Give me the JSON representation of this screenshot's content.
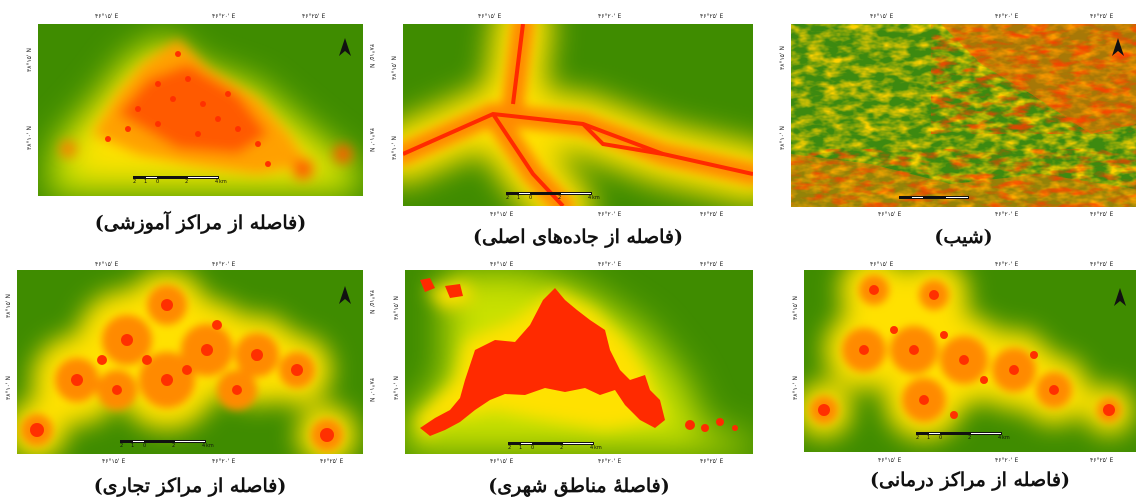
{
  "panels": [
    {
      "id": "education",
      "caption": "(فاصله از مراکز آموزشی)",
      "coords": {
        "top": [
          "۴۶°۱۵' E",
          "۴۶°۲۰' E",
          "۴۶°۲۵' E"
        ],
        "bottom": [],
        "left": [
          "۳۸°۱۵' N",
          "۳۸°۱۰' N"
        ],
        "right": [
          "۳۸°۱۵' N",
          "۳۸°۱۰' N"
        ]
      },
      "scale": {
        "labels": [
          "2",
          "1",
          "0",
          "2",
          "4"
        ],
        "unit": "km"
      }
    },
    {
      "id": "roads",
      "caption": "(فاصله از جاده‌های اصلی)",
      "coords": {
        "top": [
          "۴۶°۱۵' E",
          "۴۶°۲۰' E",
          "۴۶°۲۵' E"
        ],
        "bottom": [
          "۴۶°۱۵' E",
          "۴۶°۲۰' E",
          "۴۶°۲۵' E"
        ],
        "left": [
          "۳۸°۱۵' N",
          "۳۸°۱۰' N"
        ],
        "right": []
      },
      "scale": {
        "labels": [
          "2",
          "1",
          "0",
          "2",
          "4"
        ],
        "unit": "km"
      }
    },
    {
      "id": "slope",
      "caption": "(شیب)",
      "coords": {
        "top": [
          "۴۶°۱۵' E",
          "۴۶°۲۰' E",
          "۴۶°۲۵' E"
        ],
        "bottom": [
          "۴۶°۱۵' E",
          "۴۶°۲۰' E",
          "۴۶°۲۵' E"
        ],
        "left": [
          "۳۸°۱۵' N",
          "۳۸°۱۰' N"
        ],
        "right": []
      },
      "scale": {
        "labels": [],
        "unit": ""
      }
    },
    {
      "id": "commercial",
      "caption": "(فاصله از مراکز تجاری)",
      "coords": {
        "top": [
          "۴۶°۱۵' E",
          "۴۶°۲۰' E"
        ],
        "bottom": [
          "۴۶°۱۵' E",
          "۴۶°۲۰' E",
          "۴۶°۲۵' E"
        ],
        "left": [
          "۳۸°۱۵' N",
          "۳۸°۱۰' N"
        ],
        "right": [
          "۳۸°۱۵' N",
          "۳۸°۱۰' N"
        ]
      },
      "scale": {
        "labels": [
          "2",
          "1",
          "0",
          "2",
          "4"
        ],
        "unit": "km"
      }
    },
    {
      "id": "urban",
      "caption": "(فاصلهٔ مناطق شهری)",
      "coords": {
        "top": [
          "۴۶°۱۵' E",
          "۴۶°۲۰' E",
          "۴۶°۲۵' E"
        ],
        "bottom": [
          "۴۶°۱۵' E",
          "۴۶°۲۰' E",
          "۴۶°۲۵' E"
        ],
        "left": [
          "۳۸°۱۵' N",
          "۳۸°۱۰' N"
        ],
        "right": []
      },
      "scale": {
        "labels": [
          "2",
          "1",
          "0",
          "2",
          "4"
        ],
        "unit": "km"
      }
    },
    {
      "id": "health",
      "caption": "(فاصله از مراکز درمانی)",
      "coords": {
        "top": [
          "۴۶°۱۵' E",
          "۴۶°۲۰' E",
          "۴۶°۲۵' E"
        ],
        "bottom": [
          "۴۶°۱۵' E",
          "۴۶°۲۰' E",
          "۴۶°۲۵' E"
        ],
        "left": [
          "۳۸°۱۵' N",
          "۳۸°۱۰' N"
        ],
        "right": []
      },
      "scale": {
        "labels": [
          "2",
          "1",
          "0",
          "2",
          "4"
        ],
        "unit": "km"
      }
    }
  ],
  "colors": {
    "near": "#ff2a00",
    "mid": "#ffe000",
    "far": "#2f7d00"
  }
}
